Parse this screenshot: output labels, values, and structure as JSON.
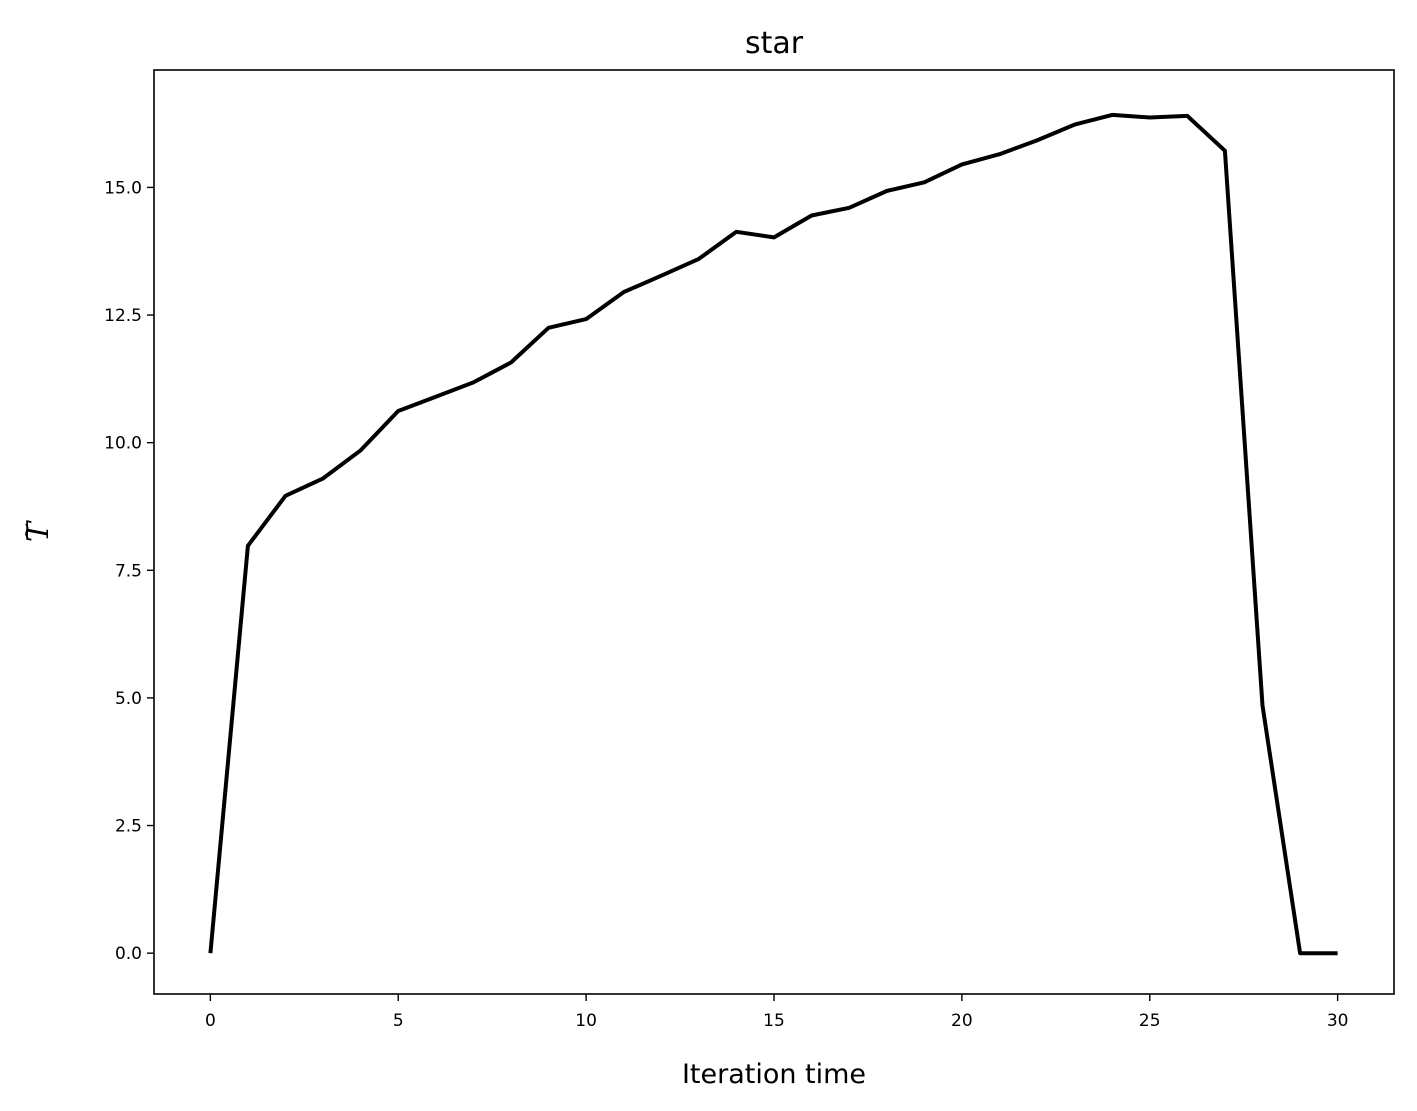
{
  "chart_data": {
    "type": "line",
    "title": "star",
    "xlabel": "Iteration time",
    "ylabel": "T",
    "ylabel_accent": "~",
    "xlim": [
      -1.5,
      31.5
    ],
    "ylim": [
      -0.8,
      17.3
    ],
    "xticks": [
      0,
      5,
      10,
      15,
      20,
      25,
      30
    ],
    "yticks": [
      0,
      2.5,
      5,
      7.5,
      10,
      12.5,
      15
    ],
    "xtick_labels": [
      "0",
      "5",
      "10",
      "15",
      "20",
      "25",
      "30"
    ],
    "ytick_labels": [
      "0.0",
      "2.5",
      "5.0",
      "7.5",
      "10.0",
      "12.5",
      "15.0"
    ],
    "grid": false,
    "line_color": "#000000",
    "series": [
      {
        "x": [
          0,
          1,
          2,
          3,
          4,
          5,
          6,
          7,
          8,
          9,
          10,
          11,
          12,
          13,
          14,
          15,
          16,
          17,
          18,
          19,
          20,
          21,
          22,
          23,
          24,
          25,
          26,
          27,
          28,
          29,
          30
        ],
        "values": [
          0.0,
          7.98,
          8.96,
          9.3,
          9.85,
          10.62,
          10.9,
          11.18,
          11.57,
          12.25,
          12.42,
          12.95,
          13.27,
          13.6,
          14.13,
          14.02,
          14.45,
          14.6,
          14.93,
          15.1,
          15.45,
          15.65,
          15.92,
          16.23,
          16.42,
          16.37,
          16.4,
          15.72,
          4.85,
          0.0,
          0.0
        ]
      }
    ]
  }
}
